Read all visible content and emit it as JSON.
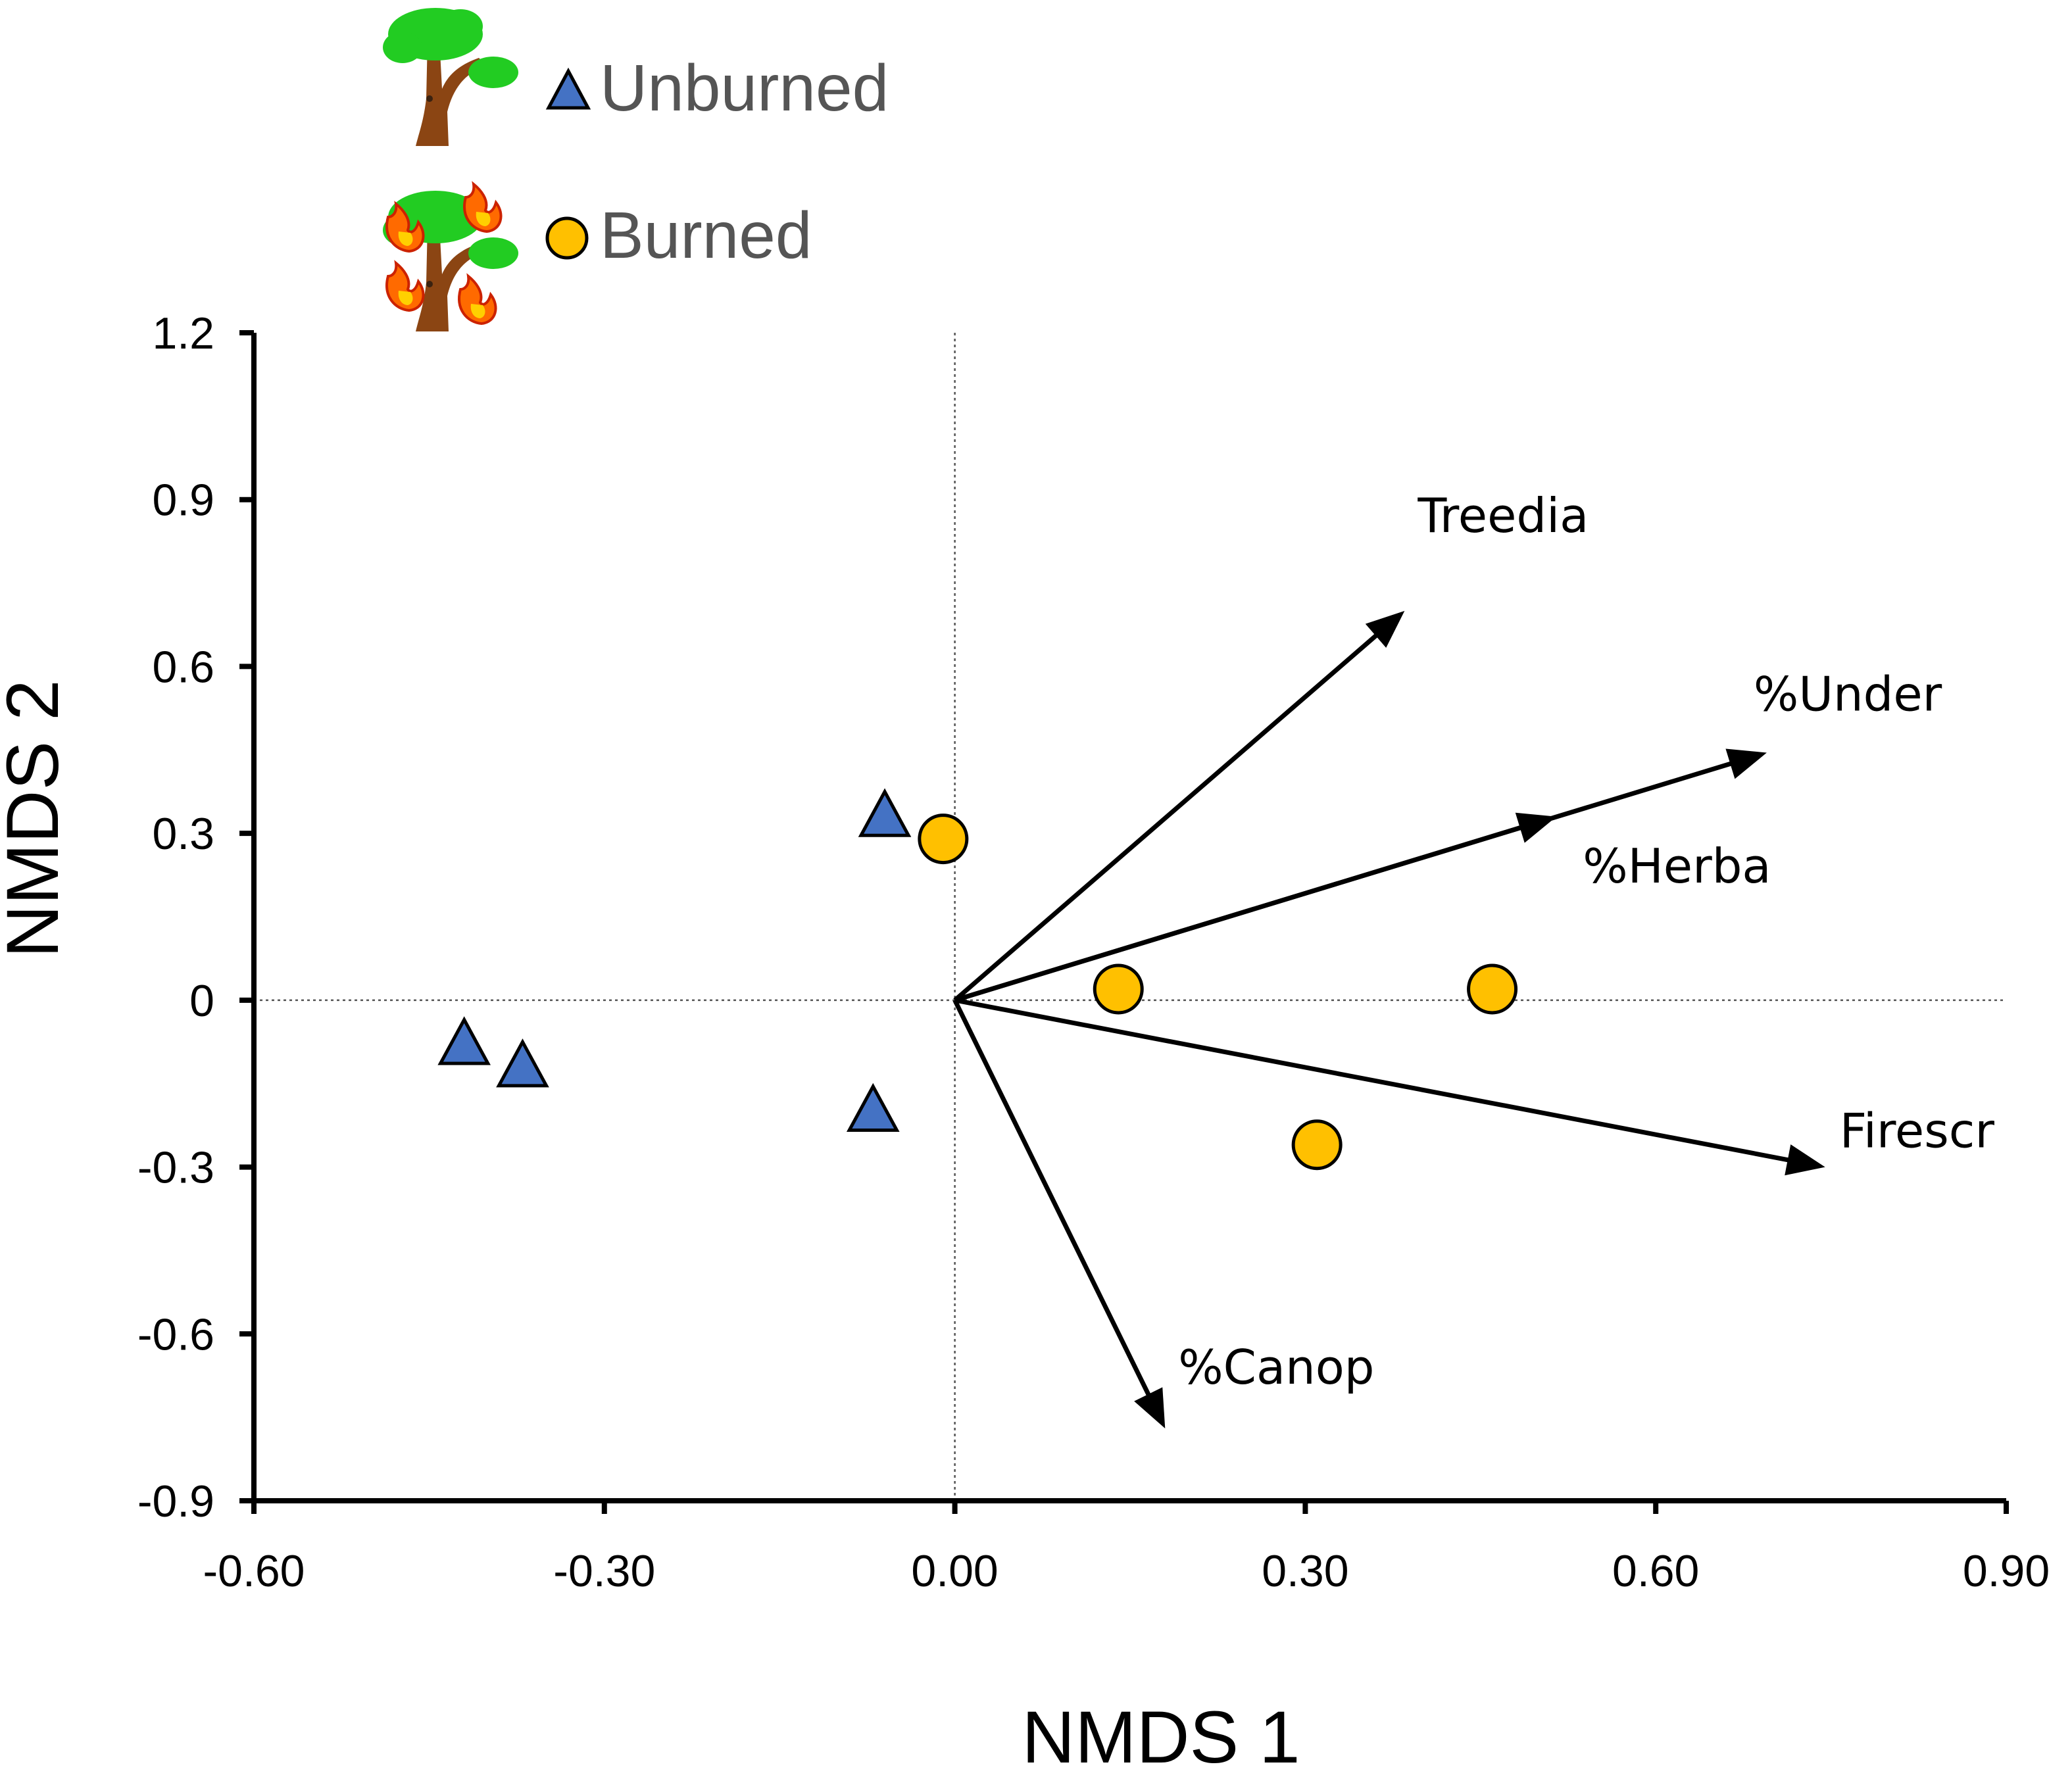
{
  "chart_data": {
    "type": "scatter",
    "subtype": "nmds-ordination-biplot",
    "xlabel": "NMDS 1",
    "ylabel": "NMDS 2",
    "xlim": [
      -0.6,
      0.9
    ],
    "ylim": [
      -0.9,
      1.2
    ],
    "xticks": [
      -0.6,
      -0.3,
      0.0,
      0.3,
      0.6,
      0.9
    ],
    "xtick_labels": [
      "-0.60",
      "-0.30",
      "0.00",
      "0.30",
      "0.60",
      "0.90"
    ],
    "yticks": [
      1.2,
      0.9,
      0.6,
      0.3,
      0.0,
      -0.3,
      -0.6,
      -0.9
    ],
    "ytick_labels": [
      "1.2",
      "0.9",
      "0.6",
      "0.3",
      "0",
      "-0.3",
      "-0.6",
      "-0.9"
    ],
    "reference_lines": {
      "x": 0,
      "y": 0,
      "style": "dotted"
    },
    "legend": {
      "placement": "top-left"
    },
    "series": [
      {
        "name": "Unburned",
        "marker": "triangle",
        "color": "#4472C4",
        "icon": "tree-icon",
        "points": [
          {
            "x": -0.42,
            "y": -0.08
          },
          {
            "x": -0.37,
            "y": -0.12
          },
          {
            "x": -0.06,
            "y": 0.33
          },
          {
            "x": -0.07,
            "y": -0.2
          }
        ]
      },
      {
        "name": "Burned",
        "marker": "circle",
        "color": "#FFC000",
        "icon": "burning-tree-icon",
        "points": [
          {
            "x": -0.01,
            "y": 0.29
          },
          {
            "x": 0.14,
            "y": 0.02
          },
          {
            "x": 0.46,
            "y": 0.02
          },
          {
            "x": 0.31,
            "y": -0.26
          }
        ]
      }
    ],
    "vectors": [
      {
        "name": "Treedia",
        "x": 0.385,
        "y": 0.7
      },
      {
        "name": "%Under",
        "x": 0.695,
        "y": 0.445
      },
      {
        "name": "%Herba",
        "x": 0.515,
        "y": 0.33
      },
      {
        "name": "Firescr",
        "x": 0.745,
        "y": -0.3
      },
      {
        "name": "%Canop",
        "x": 0.18,
        "y": -0.77
      }
    ]
  }
}
